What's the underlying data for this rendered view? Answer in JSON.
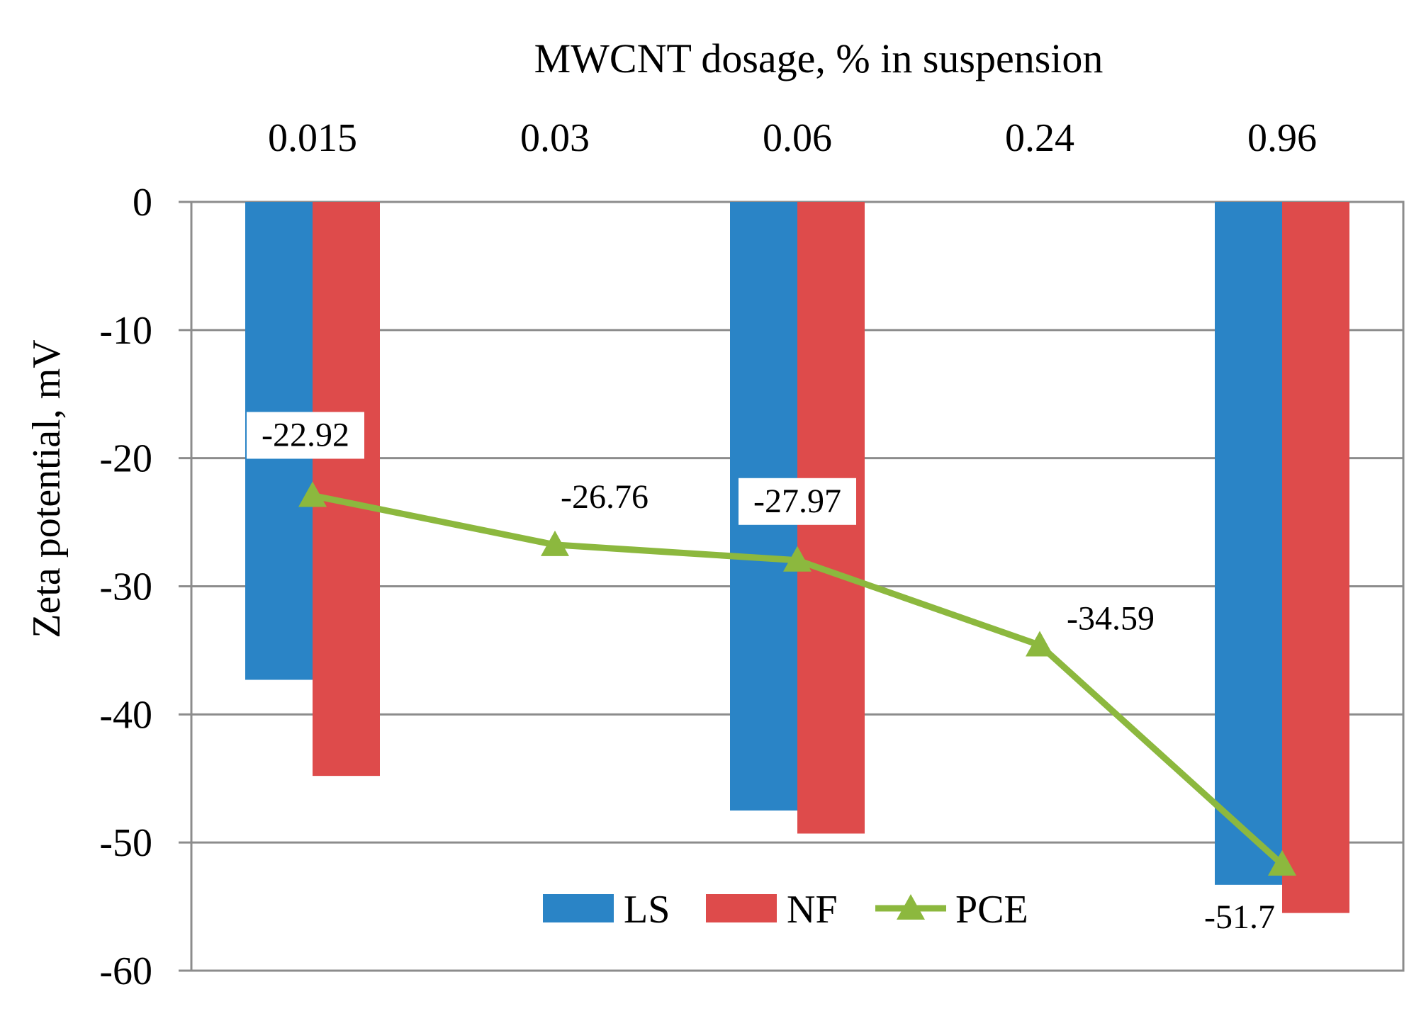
{
  "chart_data": {
    "type": "bar",
    "title": "",
    "xlabel": "MWCNT dosage, % in suspension",
    "ylabel": "Zeta potential, mV",
    "x_axis_position": "top",
    "categories": [
      "0.015",
      "0.03",
      "0.06",
      "0.24",
      "0.96"
    ],
    "yticks": [
      "0",
      "-10",
      "-20",
      "-30",
      "-40",
      "-50",
      "-60"
    ],
    "ylim": [
      -60,
      0
    ],
    "grid": true,
    "legend_position": "bottom-center",
    "series": [
      {
        "name": "LS",
        "kind": "bar",
        "color": "#2A84C6",
        "values": [
          -37.3,
          null,
          -47.5,
          null,
          -53.3
        ]
      },
      {
        "name": "NF",
        "kind": "bar",
        "color": "#DE4B4B",
        "values": [
          -44.8,
          null,
          -49.3,
          null,
          -55.5
        ]
      },
      {
        "name": "PCE",
        "kind": "line",
        "marker": "triangle",
        "color": "#8CB83E",
        "values": [
          -22.92,
          -26.76,
          -27.97,
          -34.59,
          -51.7
        ],
        "labels": [
          "-22.92",
          "-26.76",
          "-27.97",
          "-34.59",
          "-51.7"
        ]
      }
    ]
  }
}
